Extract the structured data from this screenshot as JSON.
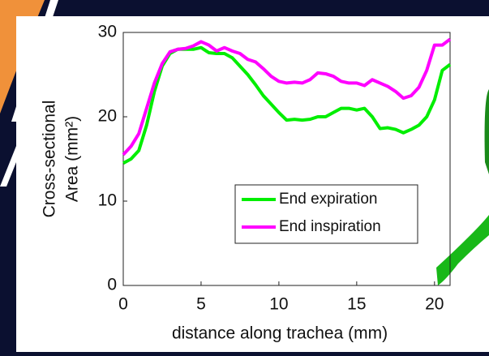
{
  "chart_data": {
    "type": "line",
    "y_label": [
      "Cross-sectional",
      "Area (mm²)"
    ],
    "x_label": "distance along trachea (mm)",
    "x": [
      0,
      0.5,
      1,
      1.5,
      2,
      2.5,
      3,
      3.5,
      4,
      4.5,
      5,
      5.5,
      6,
      6.5,
      7,
      7.5,
      8,
      8.5,
      9,
      9.5,
      10,
      10.5,
      11,
      11.5,
      12,
      12.5,
      13,
      13.5,
      14,
      14.5,
      15,
      15.5,
      16,
      16.5,
      17,
      17.5,
      18,
      18.5,
      19,
      19.5,
      20,
      20.5,
      21
    ],
    "series": [
      {
        "name": "End expiration",
        "color": "#00ee00",
        "values": [
          14.5,
          15,
          16,
          19,
          23,
          26,
          27.5,
          28,
          28,
          28,
          28.2,
          27.6,
          27.5,
          27.5,
          27,
          26,
          25,
          23.8,
          22.5,
          21.5,
          20.5,
          19.6,
          19.7,
          19.6,
          19.7,
          20,
          20,
          20.5,
          21,
          21,
          20.8,
          21,
          20,
          18.6,
          18.7,
          18.5,
          18.1,
          18.5,
          19,
          20,
          22,
          25.5,
          26.2
        ]
      },
      {
        "name": "End inspiration",
        "color": "#ff00ff",
        "values": [
          15.5,
          16.5,
          18,
          21,
          24,
          26.3,
          27.7,
          28,
          28.1,
          28.4,
          28.9,
          28.5,
          27.8,
          28.2,
          27.8,
          27.5,
          26.8,
          26.5,
          25.7,
          24.8,
          24.2,
          24,
          24.1,
          24,
          24.4,
          25.2,
          25.1,
          24.8,
          24.2,
          24,
          24,
          23.7,
          24.4,
          24,
          23.6,
          23,
          22.2,
          22.5,
          23.5,
          25.5,
          28.5,
          28.5,
          29.2
        ]
      }
    ],
    "xlim": [
      0,
      21
    ],
    "xticks": [
      0,
      5,
      10,
      15,
      20
    ],
    "ylim": [
      0,
      30
    ],
    "yticks": [
      0,
      10,
      20,
      30
    ],
    "legend": "lower-right"
  }
}
